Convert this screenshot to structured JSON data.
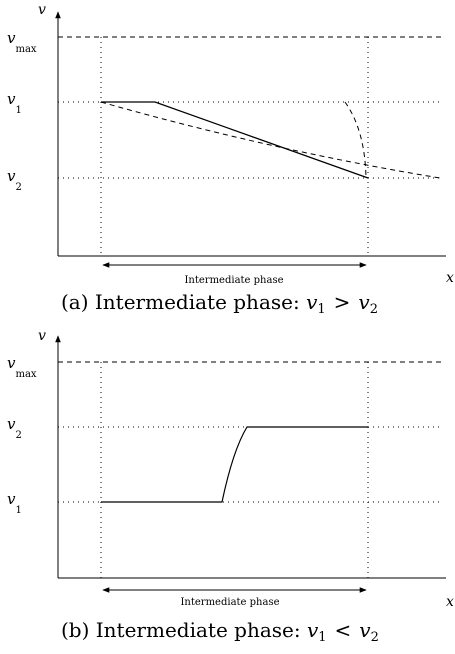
{
  "panels": [
    {
      "v_axis_label": "v",
      "x_axis_label": "x",
      "vmax_main": "v",
      "vmax_sub": "max",
      "upper_main": "v",
      "upper_sub": "1",
      "lower_main": "v",
      "lower_sub": "2",
      "phase_label": "Intermediate phase",
      "caption_prefix": "(a) Intermediate phase: ",
      "caption_lhs": "v",
      "caption_lhs_sub": "1",
      "caption_op": ">",
      "caption_rhs": "v",
      "caption_rhs_sub": "2"
    },
    {
      "v_axis_label": "v",
      "x_axis_label": "x",
      "vmax_main": "v",
      "vmax_sub": "max",
      "upper_main": "v",
      "upper_sub": "2",
      "lower_main": "v",
      "lower_sub": "1",
      "phase_label": "Intermediate phase",
      "caption_prefix": "(b) Intermediate phase: ",
      "caption_lhs": "v",
      "caption_lhs_sub": "1",
      "caption_op": "<",
      "caption_rhs": "v",
      "caption_rhs_sub": "2"
    }
  ]
}
